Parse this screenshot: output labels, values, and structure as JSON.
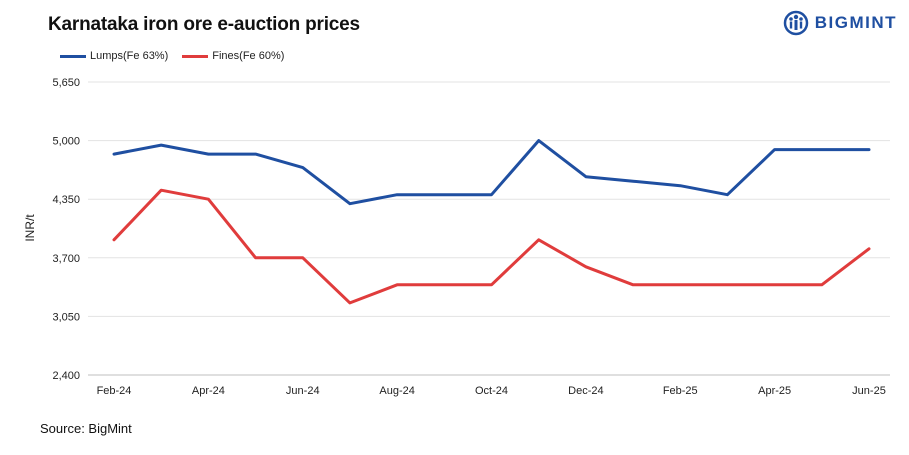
{
  "header": {
    "title": "Karnataka iron ore e-auction prices",
    "logo_text": "BIGMINT",
    "brand_color": "#1f4fa1"
  },
  "footer": {
    "source": "Source: BigMint"
  },
  "chart_data": {
    "type": "line",
    "title": "Karnataka iron ore e-auction prices",
    "ylabel": "INR/t",
    "xlabel": "",
    "ylim": [
      2400,
      5650
    ],
    "yticks": [
      "2,400",
      "3,050",
      "3,700",
      "4,350",
      "5,000",
      "5,650"
    ],
    "ytick_values": [
      2400,
      3050,
      3700,
      4350,
      5000,
      5650
    ],
    "x": [
      "Feb-24",
      "Mar-24",
      "Apr-24",
      "May-24",
      "Jun-24",
      "Jul-24",
      "Aug-24",
      "Sep-24",
      "Oct-24",
      "Nov-24",
      "Dec-24",
      "Jan-25",
      "Feb-25",
      "Mar-25",
      "Apr-25",
      "May-25",
      "Jun-25"
    ],
    "xtick_labels": [
      "Feb-24",
      "",
      "Apr-24",
      "",
      "Jun-24",
      "",
      "Aug-24",
      "",
      "Oct-24",
      "",
      "Dec-24",
      "",
      "Feb-25",
      "",
      "Apr-25",
      "",
      "Jun-25"
    ],
    "grid": true,
    "legend_position": "top-left",
    "series": [
      {
        "name": "Lumps(Fe 63%)",
        "color": "#1f4fa1",
        "values": [
          4850,
          4950,
          4850,
          4850,
          4700,
          4300,
          4400,
          4400,
          4400,
          5000,
          4600,
          4550,
          4500,
          4400,
          4900,
          4900,
          4900
        ]
      },
      {
        "name": "Fines(Fe 60%)",
        "color": "#e03c3c",
        "values": [
          3900,
          4450,
          4350,
          3700,
          3700,
          3200,
          3400,
          3400,
          3400,
          3900,
          3600,
          3400,
          3400,
          3400,
          3400,
          3400,
          3800
        ]
      }
    ]
  }
}
